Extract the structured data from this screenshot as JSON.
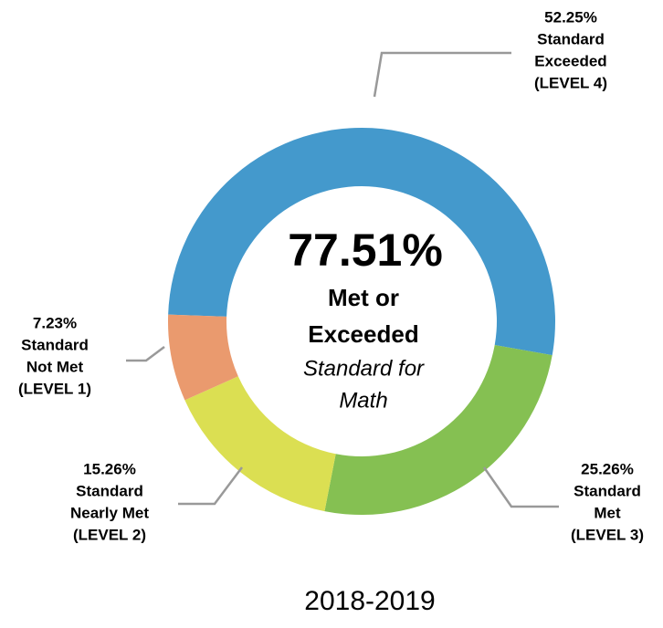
{
  "chart_data": {
    "type": "pie",
    "categories": [
      [
        "Standard",
        "Exceeded",
        "(LEVEL 4)"
      ],
      [
        "Standard",
        "Met",
        "(LEVEL 3)"
      ],
      [
        "Standard",
        "Nearly Met",
        "(LEVEL 2)"
      ],
      [
        "Standard",
        "Not Met",
        "(LEVEL 1)"
      ]
    ],
    "values": [
      52.25,
      25.26,
      15.26,
      7.23
    ],
    "value_labels": [
      "52.25%",
      "25.26%",
      "15.26%",
      "7.23%"
    ],
    "colors": [
      "#4499cc",
      "#85c052",
      "#dbdf52",
      "#ea9a6e"
    ],
    "center_text": [
      "77.51%",
      "Met or",
      "Exceeded",
      "Standard for",
      "Math"
    ],
    "caption": "2018-2019"
  }
}
